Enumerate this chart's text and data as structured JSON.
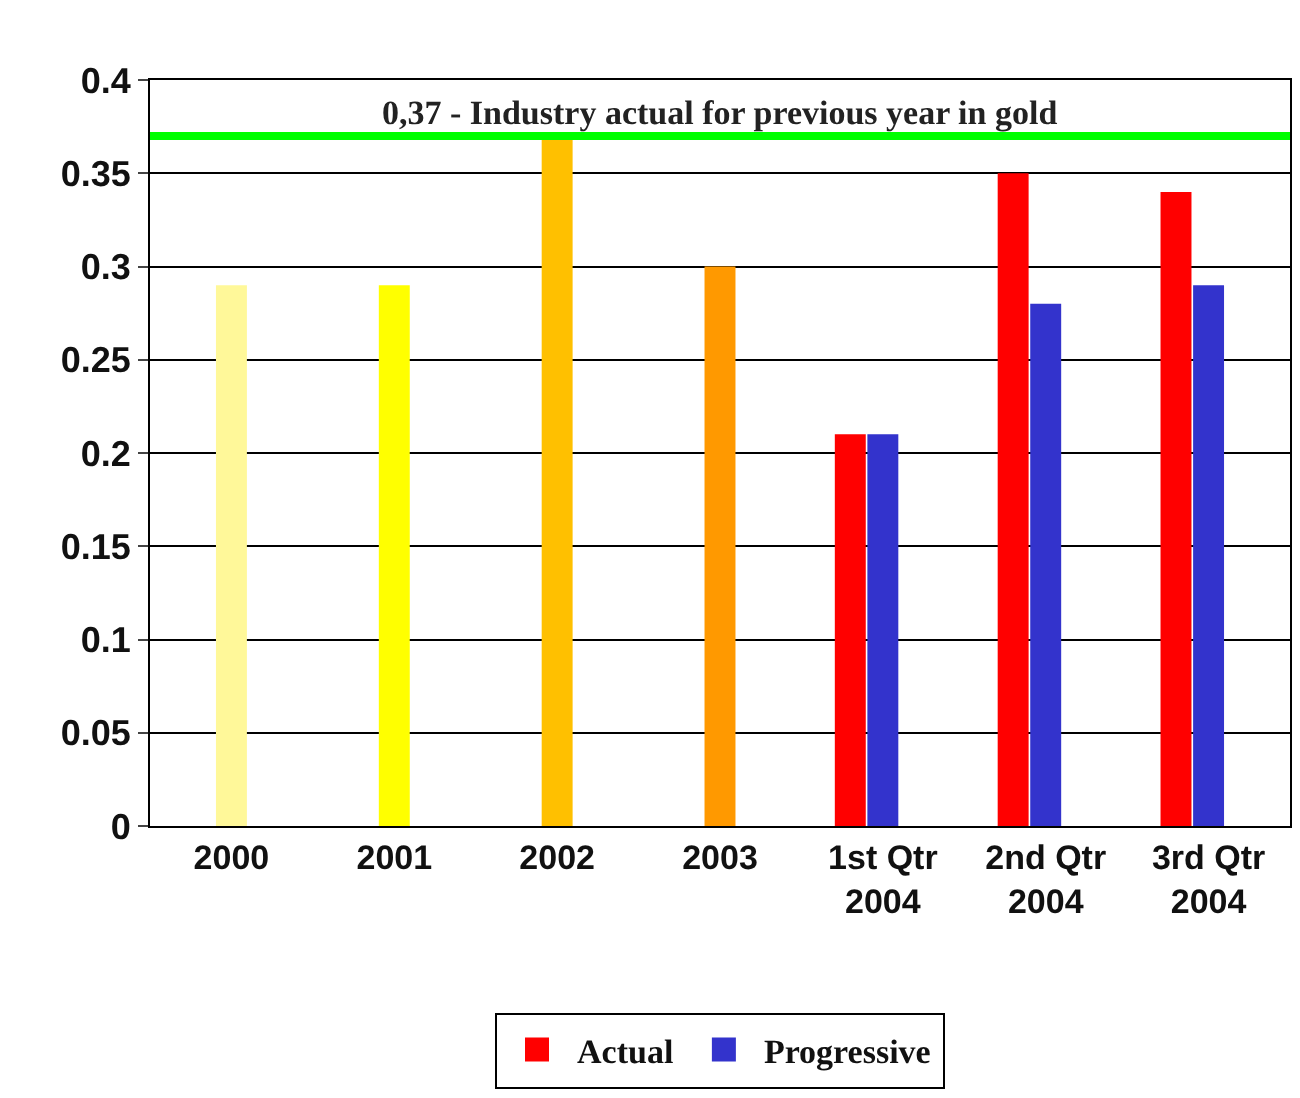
{
  "chart_data": {
    "type": "bar",
    "categories": [
      "2000",
      "2001",
      "2002",
      "2003",
      "1st Qtr 2004",
      "2nd Qtr 2004",
      "3rd Qtr 2004"
    ],
    "series": [
      {
        "name": "Actual",
        "color": "#ff0000",
        "values": [
          null,
          null,
          null,
          null,
          0.21,
          0.35,
          0.34
        ]
      },
      {
        "name": "Progressive",
        "color": "#3333cc",
        "colors": [
          "#fff899",
          "#ffff00",
          "#ffc000",
          "#ff9900",
          "#3333cc",
          "#3333cc",
          "#3333cc"
        ],
        "values": [
          0.29,
          0.29,
          0.37,
          0.3,
          0.21,
          0.28,
          0.29
        ]
      }
    ],
    "ylim": [
      0,
      0.4
    ],
    "yticks": [
      0,
      0.05,
      0.1,
      0.15,
      0.2,
      0.25,
      0.3,
      0.35,
      0.4
    ],
    "grid": "y",
    "legend": "bottom",
    "ref_lines": [
      {
        "axis": "y",
        "value": 0.37,
        "label": "0,37 - Industry actual for previous year in gold",
        "color": "#00ff00"
      }
    ]
  }
}
